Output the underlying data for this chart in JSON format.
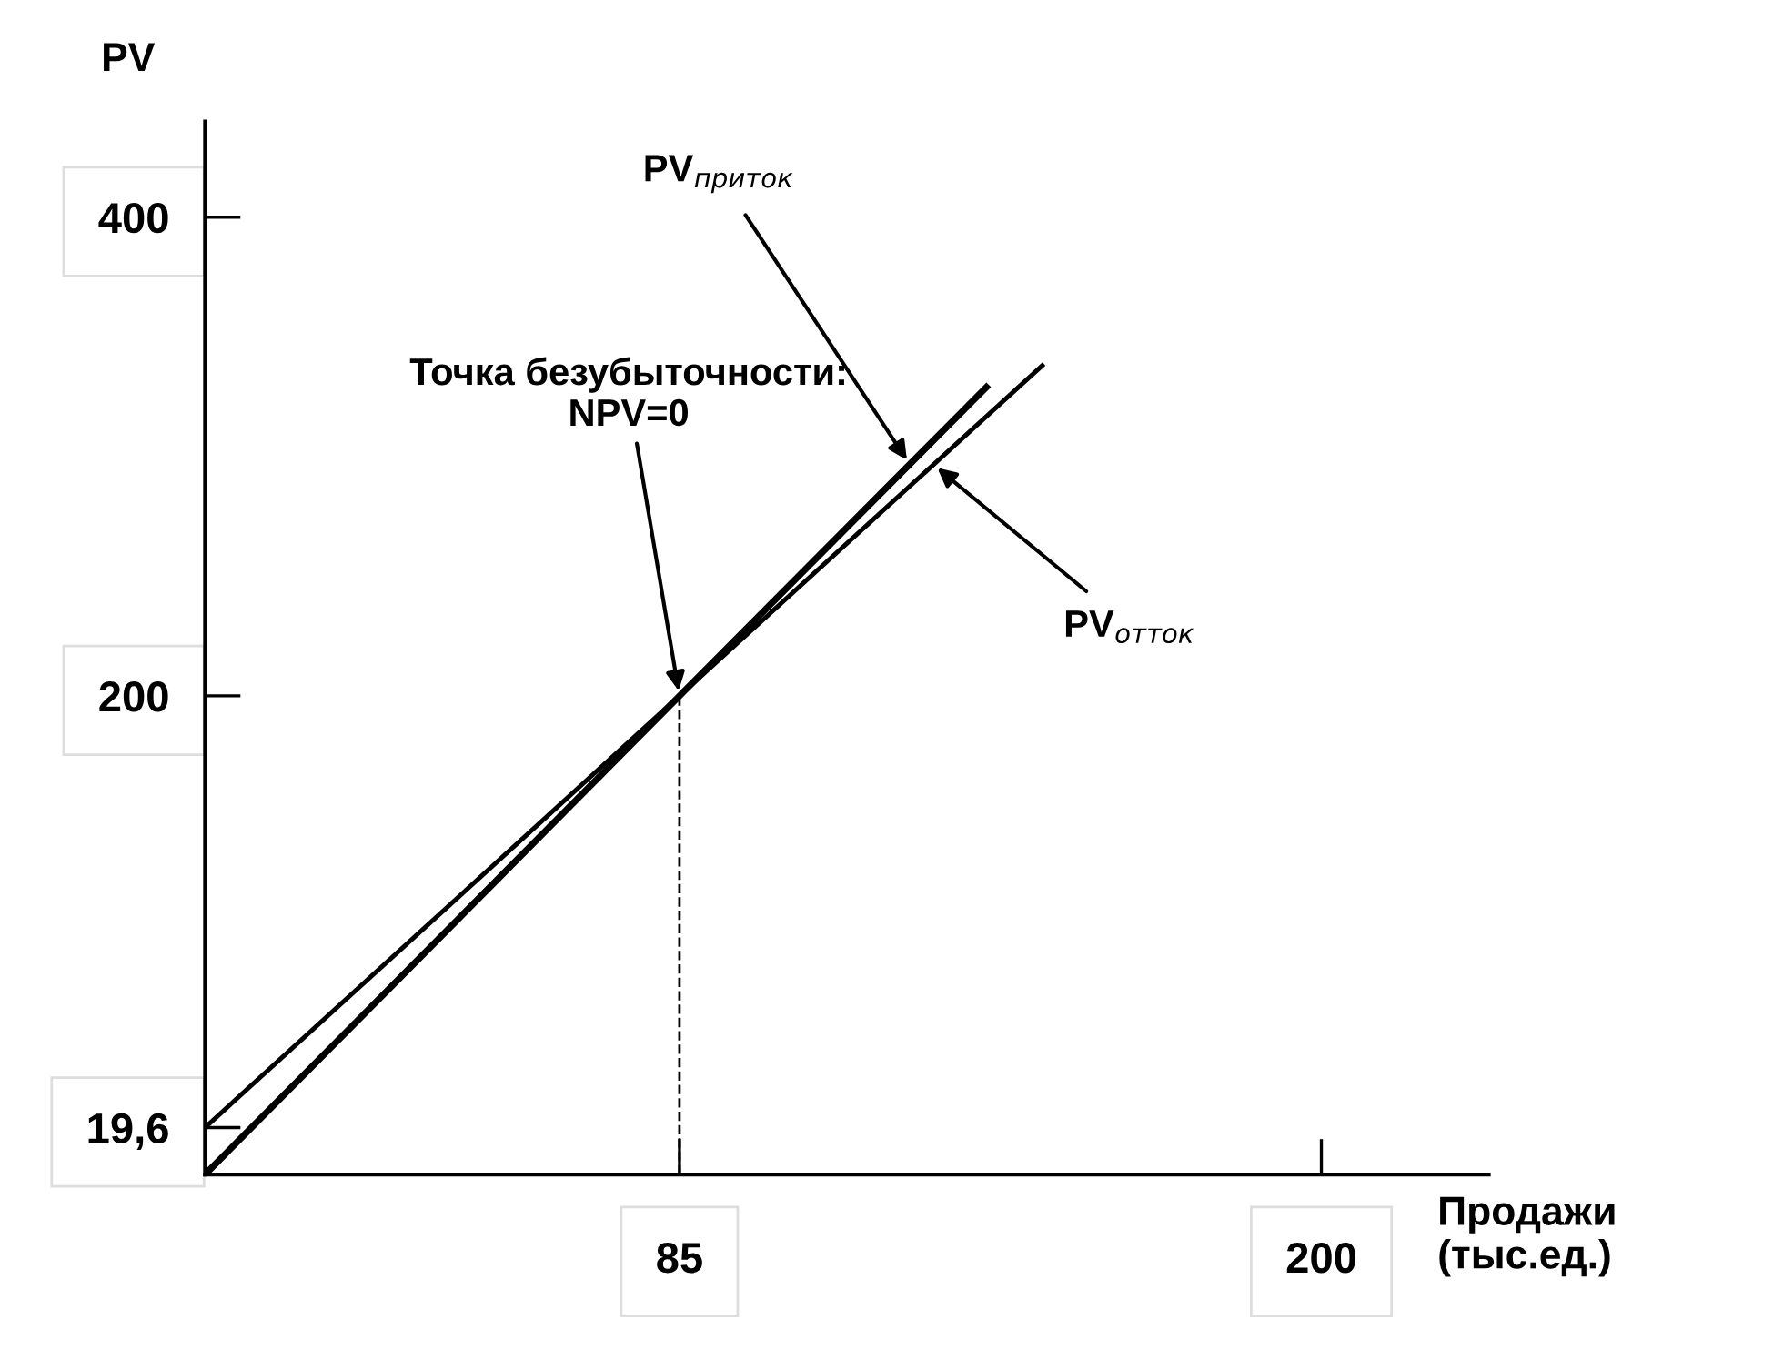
{
  "chart_data": {
    "type": "line",
    "ylabel": "PV",
    "xlabel": "Продажи\n(тыс.ед.)",
    "series": [
      {
        "name": "PV$_{приток}$",
        "color": "#000000",
        "values": [
          0,
          200,
          329
        ],
        "x": [
          0,
          85,
          140
        ]
      },
      {
        "name": "PV$_{отток}$",
        "color": "#000000",
        "values": [
          19.6,
          200,
          338
        ],
        "x": [
          0,
          85,
          150
        ]
      }
    ],
    "xlim": [
      0,
      230
    ],
    "ylim": [
      0,
      440
    ],
    "xticks": [
      85,
      200
    ],
    "yticks": [
      {
        "value": 19.6,
        "label": "19,6"
      },
      200,
      400
    ],
    "annotations": [
      {
        "text": "Точка безубыточности:\nNPV=0",
        "x": 85,
        "y": 200
      }
    ],
    "ref_lines": [
      {
        "axis": "x",
        "value": 85,
        "line_style": "dashed",
        "color": "#000000"
      }
    ],
    "grid": false,
    "legend": false,
    "marker": "none",
    "line_style": "solid"
  }
}
